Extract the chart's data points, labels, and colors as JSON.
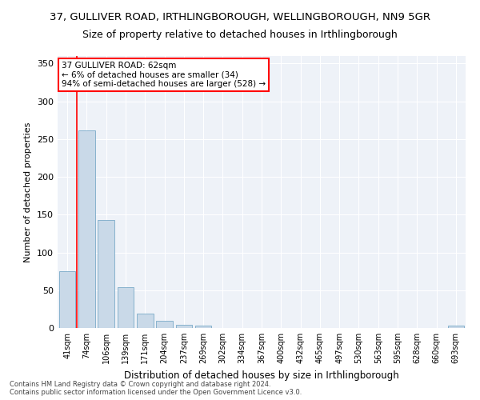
{
  "title_line1": "37, GULLIVER ROAD, IRTHLINGBOROUGH, WELLINGBOROUGH, NN9 5GR",
  "title_line2": "Size of property relative to detached houses in Irthlingborough",
  "xlabel": "Distribution of detached houses by size in Irthlingborough",
  "ylabel": "Number of detached properties",
  "categories": [
    "41sqm",
    "74sqm",
    "106sqm",
    "139sqm",
    "171sqm",
    "204sqm",
    "237sqm",
    "269sqm",
    "302sqm",
    "334sqm",
    "367sqm",
    "400sqm",
    "432sqm",
    "465sqm",
    "497sqm",
    "530sqm",
    "563sqm",
    "595sqm",
    "628sqm",
    "660sqm",
    "693sqm"
  ],
  "values": [
    75,
    262,
    143,
    54,
    19,
    10,
    4,
    3,
    0,
    0,
    0,
    0,
    0,
    0,
    0,
    0,
    0,
    0,
    0,
    0,
    3
  ],
  "bar_color": "#c9d9e8",
  "bar_edge_color": "#7aaac8",
  "annotation_line1": "37 GULLIVER ROAD: 62sqm",
  "annotation_line2": "← 6% of detached houses are smaller (34)",
  "annotation_line3": "94% of semi-detached houses are larger (528) →",
  "ylim": [
    0,
    360
  ],
  "yticks": [
    0,
    50,
    100,
    150,
    200,
    250,
    300,
    350
  ],
  "footer_line1": "Contains HM Land Registry data © Crown copyright and database right 2024.",
  "footer_line2": "Contains public sector information licensed under the Open Government Licence v3.0.",
  "background_color": "#eef2f8",
  "grid_color": "#ffffff",
  "title_fontsize": 9.5,
  "subtitle_fontsize": 9
}
